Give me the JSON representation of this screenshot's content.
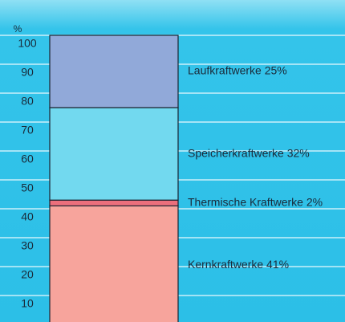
{
  "chart_data": {
    "type": "stacked-bar",
    "ylabel": "%",
    "series": [
      {
        "values": [
          41
        ],
        "value_labels": [
          "Kernkraftwerke 41%"
        ],
        "color": "#f7a49c"
      },
      {
        "values": [
          2
        ],
        "value_labels": [
          "Thermische Kraftwerke 2%"
        ],
        "color": "#ec6f7c"
      },
      {
        "values": [
          32
        ],
        "value_labels": [
          "Speicherkraftwerke 32%"
        ],
        "color": "#72d9ef"
      },
      {
        "values": [
          25
        ],
        "value_labels": [
          "Laufkraftwerke 25%"
        ],
        "color": "#91a9d9"
      }
    ],
    "ylim": [
      0,
      100
    ],
    "yticks": [
      10,
      20,
      30,
      40,
      50,
      60,
      70,
      80,
      90,
      100
    ],
    "grid": true
  }
}
